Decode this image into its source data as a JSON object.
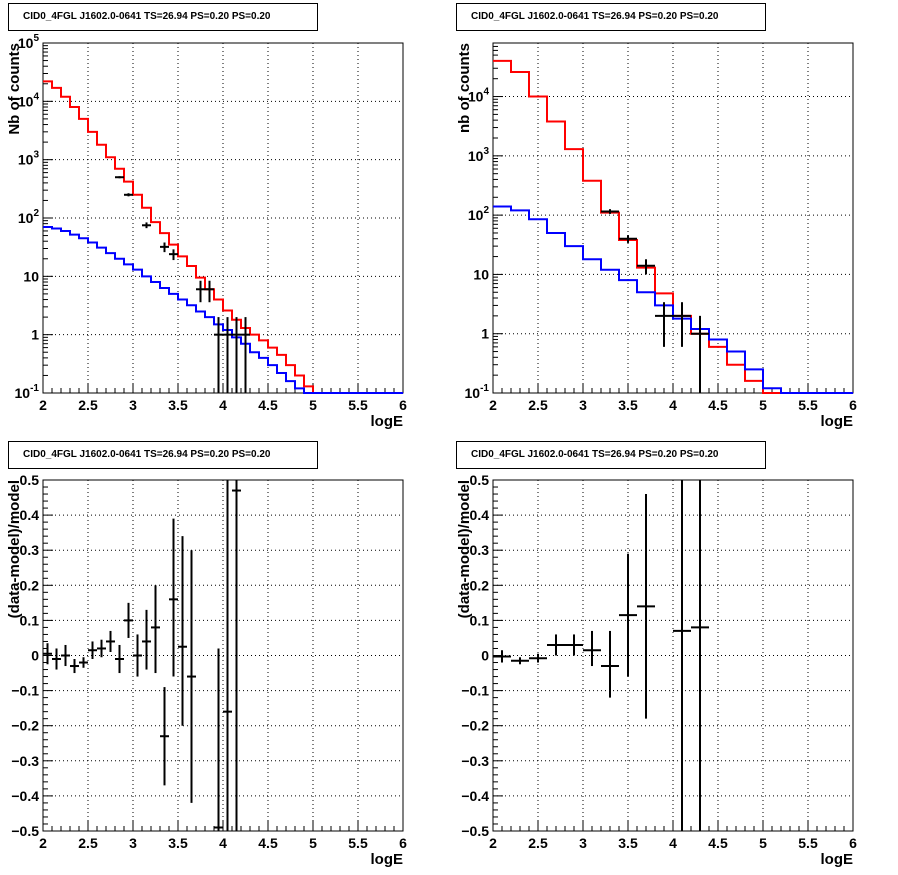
{
  "chart_data": [
    {
      "type": "line",
      "title": "CID0_4FGL J1602.0-0641 TS=26.94 PS=0.20 PS=0.20",
      "xlabel": "logE",
      "ylabel": "Nb of counts",
      "xlim": [
        2,
        6
      ],
      "ylim": [
        0.1,
        100000
      ],
      "yscale": "log",
      "grid": true,
      "xticks": [
        2,
        2.5,
        3,
        3.5,
        4,
        4.5,
        5,
        5.5,
        6
      ],
      "xtick_labels": [
        "2",
        "2.5",
        "3",
        "3.5",
        "4",
        "4.5",
        "5",
        "5.5",
        "6"
      ],
      "yticks": [
        0.1,
        1,
        10,
        100,
        1000,
        10000,
        100000
      ],
      "ytick_labels": [
        "10^-1",
        "1",
        "10",
        "10^2",
        "10^3",
        "10^4",
        "10^5"
      ],
      "bin_edges": [
        2,
        2.1,
        2.2,
        2.3,
        2.4,
        2.5,
        2.6,
        2.7,
        2.8,
        2.9,
        3,
        3.1,
        3.2,
        3.3,
        3.4,
        3.5,
        3.6,
        3.7,
        3.8,
        3.9,
        4,
        4.1,
        4.2,
        4.3,
        4.4,
        4.5,
        4.6,
        4.7,
        4.8,
        4.9,
        5,
        5.1,
        5.2,
        5.3,
        5.4,
        5.5,
        5.6,
        5.7,
        5.8,
        5.9,
        6
      ],
      "series": [
        {
          "color": "#ff0000",
          "style": "step",
          "values": [
            22000,
            17000,
            12000,
            8000,
            5000,
            3000,
            1800,
            1100,
            700,
            420,
            250,
            150,
            85,
            55,
            35,
            22,
            15,
            9.5,
            6,
            4,
            2.6,
            1.8,
            1.3,
            1.0,
            0.8,
            0.6,
            0.45,
            0.3,
            0.2,
            0.13,
            0.1,
            0.1,
            0.1,
            0.1,
            0.1,
            0.1,
            0.1,
            0.1,
            0.1,
            0.1
          ]
        },
        {
          "color": "#0000ff",
          "style": "step",
          "values": [
            70,
            66,
            60,
            52,
            45,
            38,
            31,
            25,
            20,
            16,
            13,
            10,
            8,
            6.3,
            5,
            4,
            3.2,
            2.5,
            2,
            1.5,
            1.2,
            0.9,
            0.7,
            0.5,
            0.4,
            0.3,
            0.22,
            0.16,
            0.12,
            0.1,
            0.1,
            0.1,
            0.1,
            0.1,
            0.1,
            0.1,
            0.1,
            0.1,
            0.1,
            0.1
          ]
        }
      ],
      "points": [
        {
          "x": 2.85,
          "y": 500,
          "xerr": 0.05,
          "ylo": 480,
          "yhi": 520
        },
        {
          "x": 2.95,
          "y": 250,
          "xerr": 0.05,
          "ylo": 235,
          "yhi": 266
        },
        {
          "x": 3.15,
          "y": 75,
          "xerr": 0.05,
          "ylo": 67,
          "yhi": 84
        },
        {
          "x": 3.35,
          "y": 32,
          "xerr": 0.05,
          "ylo": 26,
          "yhi": 38
        },
        {
          "x": 3.45,
          "y": 24,
          "xerr": 0.05,
          "ylo": 19,
          "yhi": 29
        },
        {
          "x": 3.75,
          "y": 6,
          "xerr": 0.05,
          "ylo": 3.6,
          "yhi": 8.4
        },
        {
          "x": 3.85,
          "y": 6,
          "xerr": 0.05,
          "ylo": 3.6,
          "yhi": 8.4
        },
        {
          "x": 3.95,
          "y": 1,
          "xerr": 0.05,
          "ylo": 0.1,
          "yhi": 2
        },
        {
          "x": 4.05,
          "y": 1,
          "xerr": 0.05,
          "ylo": 0.1,
          "yhi": 2
        },
        {
          "x": 4.15,
          "y": 1,
          "xerr": 0.05,
          "ylo": 0.1,
          "yhi": 2
        },
        {
          "x": 4.25,
          "y": 1,
          "xerr": 0.05,
          "ylo": 0.1,
          "yhi": 2
        }
      ]
    },
    {
      "type": "line",
      "title": "CID0_4FGL J1602.0-0641 TS=26.94 PS=0.20 PS=0.20",
      "xlabel": "logE",
      "ylabel": "nb of counts",
      "xlim": [
        2,
        6
      ],
      "ylim": [
        0.1,
        80000
      ],
      "yscale": "log",
      "grid": true,
      "xticks": [
        2,
        2.5,
        3,
        3.5,
        4,
        4.5,
        5,
        5.5,
        6
      ],
      "xtick_labels": [
        "2",
        "2.5",
        "3",
        "3.5",
        "4",
        "4.5",
        "5",
        "5.5",
        "6"
      ],
      "yticks": [
        0.1,
        1,
        10,
        100,
        1000,
        10000
      ],
      "ytick_labels": [
        "10^-1",
        "1",
        "10",
        "10^2",
        "10^3",
        "10^4"
      ],
      "bin_edges": [
        2,
        2.2,
        2.4,
        2.6,
        2.8,
        3,
        3.2,
        3.4,
        3.6,
        3.8,
        4,
        4.2,
        4.4,
        4.6,
        4.8,
        5,
        5.2,
        5.4,
        5.6,
        5.8,
        6
      ],
      "series": [
        {
          "color": "#ff0000",
          "style": "step",
          "values": [
            40000,
            26000,
            10000,
            3800,
            1300,
            380,
            110,
            38,
            13,
            4.8,
            2.0,
            1.0,
            0.6,
            0.3,
            0.16,
            0.1,
            0.1,
            0.1,
            0.1,
            0.1
          ]
        },
        {
          "color": "#0000ff",
          "style": "step",
          "values": [
            140,
            120,
            85,
            50,
            30,
            18,
            12,
            8,
            5,
            3,
            1.8,
            1.2,
            0.8,
            0.5,
            0.25,
            0.12,
            0.1,
            0.1,
            0.1,
            0.1
          ]
        }
      ],
      "points": [
        {
          "x": 3.3,
          "y": 115,
          "xerr": 0.1,
          "ylo": 105,
          "yhi": 126
        },
        {
          "x": 3.5,
          "y": 40,
          "xerr": 0.1,
          "ylo": 34,
          "yhi": 46
        },
        {
          "x": 3.7,
          "y": 14,
          "xerr": 0.1,
          "ylo": 10,
          "yhi": 18
        },
        {
          "x": 3.9,
          "y": 2,
          "xerr": 0.1,
          "ylo": 0.6,
          "yhi": 3.4
        },
        {
          "x": 4.1,
          "y": 2,
          "xerr": 0.1,
          "ylo": 0.6,
          "yhi": 3.4
        },
        {
          "x": 4.3,
          "y": 1,
          "xerr": 0.1,
          "ylo": 0.1,
          "yhi": 2
        }
      ]
    },
    {
      "type": "scatter",
      "title": "CID0_4FGL J1602.0-0641 TS=26.94 PS=0.20 PS=0.20",
      "xlabel": "logE",
      "ylabel": "(data-model)/model",
      "xlim": [
        2,
        6
      ],
      "ylim": [
        -0.5,
        0.5
      ],
      "grid": true,
      "xticks": [
        2,
        2.5,
        3,
        3.5,
        4,
        4.5,
        5,
        5.5,
        6
      ],
      "xtick_labels": [
        "2",
        "2.5",
        "3",
        "3.5",
        "4",
        "4.5",
        "5",
        "5.5",
        "6"
      ],
      "yticks": [
        -0.5,
        -0.4,
        -0.3,
        -0.2,
        -0.1,
        0,
        0.1,
        0.2,
        0.3,
        0.4,
        0.5
      ],
      "ytick_labels": [
        "−0.5",
        "−0.4",
        "−0.3",
        "−0.2",
        "−0.1",
        "0",
        "0.1",
        "0.2",
        "0.3",
        "0.4",
        "0.5"
      ],
      "points": [
        {
          "x": 2.05,
          "y": 0.005,
          "xerr": 0.05,
          "ylo": -0.025,
          "yhi": 0.035
        },
        {
          "x": 2.15,
          "y": -0.01,
          "xerr": 0.05,
          "ylo": -0.04,
          "yhi": 0.02
        },
        {
          "x": 2.25,
          "y": 0.0,
          "xerr": 0.05,
          "ylo": -0.03,
          "yhi": 0.03
        },
        {
          "x": 2.35,
          "y": -0.03,
          "xerr": 0.05,
          "ylo": -0.05,
          "yhi": -0.01
        },
        {
          "x": 2.45,
          "y": -0.02,
          "xerr": 0.05,
          "ylo": -0.035,
          "yhi": -0.005
        },
        {
          "x": 2.55,
          "y": 0.015,
          "xerr": 0.05,
          "ylo": -0.01,
          "yhi": 0.04
        },
        {
          "x": 2.65,
          "y": 0.02,
          "xerr": 0.05,
          "ylo": -0.005,
          "yhi": 0.045
        },
        {
          "x": 2.75,
          "y": 0.04,
          "xerr": 0.05,
          "ylo": 0.01,
          "yhi": 0.07
        },
        {
          "x": 2.85,
          "y": -0.01,
          "xerr": 0.05,
          "ylo": -0.05,
          "yhi": 0.03
        },
        {
          "x": 2.95,
          "y": 0.1,
          "xerr": 0.05,
          "ylo": 0.05,
          "yhi": 0.15
        },
        {
          "x": 3.05,
          "y": 0.0,
          "xerr": 0.05,
          "ylo": -0.06,
          "yhi": 0.06
        },
        {
          "x": 3.15,
          "y": 0.04,
          "xerr": 0.05,
          "ylo": -0.04,
          "yhi": 0.13
        },
        {
          "x": 3.25,
          "y": 0.08,
          "xerr": 0.05,
          "ylo": -0.05,
          "yhi": 0.2
        },
        {
          "x": 3.35,
          "y": -0.23,
          "xerr": 0.05,
          "ylo": -0.37,
          "yhi": -0.09
        },
        {
          "x": 3.45,
          "y": 0.16,
          "xerr": 0.05,
          "ylo": -0.06,
          "yhi": 0.39
        },
        {
          "x": 3.55,
          "y": 0.025,
          "xerr": 0.05,
          "ylo": -0.2,
          "yhi": 0.34
        },
        {
          "x": 3.65,
          "y": -0.06,
          "xerr": 0.05,
          "ylo": -0.42,
          "yhi": 0.3
        },
        {
          "x": 3.95,
          "y": -0.49,
          "xerr": 0.05,
          "ylo": -0.5,
          "yhi": 0.02
        },
        {
          "x": 4.05,
          "y": -0.16,
          "xerr": 0.05,
          "ylo": -0.5,
          "yhi": 0.5
        },
        {
          "x": 4.15,
          "y": 0.47,
          "xerr": 0.05,
          "ylo": -0.5,
          "yhi": 0.5
        }
      ]
    },
    {
      "type": "scatter",
      "title": "CID0_4FGL J1602.0-0641 TS=26.94 PS=0.20 PS=0.20",
      "xlabel": "logE",
      "ylabel": "(data-model)/model",
      "xlim": [
        2,
        6
      ],
      "ylim": [
        -0.5,
        0.5
      ],
      "grid": true,
      "xticks": [
        2,
        2.5,
        3,
        3.5,
        4,
        4.5,
        5,
        5.5,
        6
      ],
      "xtick_labels": [
        "2",
        "2.5",
        "3",
        "3.5",
        "4",
        "4.5",
        "5",
        "5.5",
        "6"
      ],
      "yticks": [
        -0.5,
        -0.4,
        -0.3,
        -0.2,
        -0.1,
        0,
        0.1,
        0.2,
        0.3,
        0.4,
        0.5
      ],
      "ytick_labels": [
        "−0.5",
        "−0.4",
        "−0.3",
        "−0.2",
        "−0.1",
        "0",
        "0.1",
        "0.2",
        "0.3",
        "0.4",
        "0.5"
      ],
      "points": [
        {
          "x": 2.1,
          "y": -0.003,
          "xerr": 0.1,
          "ylo": -0.02,
          "yhi": 0.015
        },
        {
          "x": 2.3,
          "y": -0.015,
          "xerr": 0.1,
          "ylo": -0.025,
          "yhi": -0.005
        },
        {
          "x": 2.5,
          "y": -0.008,
          "xerr": 0.1,
          "ylo": -0.02,
          "yhi": 0.005
        },
        {
          "x": 2.7,
          "y": 0.03,
          "xerr": 0.1,
          "ylo": 0.0,
          "yhi": 0.06
        },
        {
          "x": 2.9,
          "y": 0.03,
          "xerr": 0.1,
          "ylo": 0.0,
          "yhi": 0.06
        },
        {
          "x": 3.1,
          "y": 0.015,
          "xerr": 0.1,
          "ylo": -0.03,
          "yhi": 0.07
        },
        {
          "x": 3.3,
          "y": -0.03,
          "xerr": 0.1,
          "ylo": -0.12,
          "yhi": 0.07
        },
        {
          "x": 3.5,
          "y": 0.115,
          "xerr": 0.1,
          "ylo": -0.06,
          "yhi": 0.29
        },
        {
          "x": 3.7,
          "y": 0.14,
          "xerr": 0.1,
          "ylo": -0.18,
          "yhi": 0.46
        },
        {
          "x": 4.1,
          "y": 0.07,
          "xerr": 0.1,
          "ylo": -0.5,
          "yhi": 0.5
        },
        {
          "x": 4.3,
          "y": 0.08,
          "xerr": 0.1,
          "ylo": -0.5,
          "yhi": 0.5
        }
      ]
    }
  ]
}
